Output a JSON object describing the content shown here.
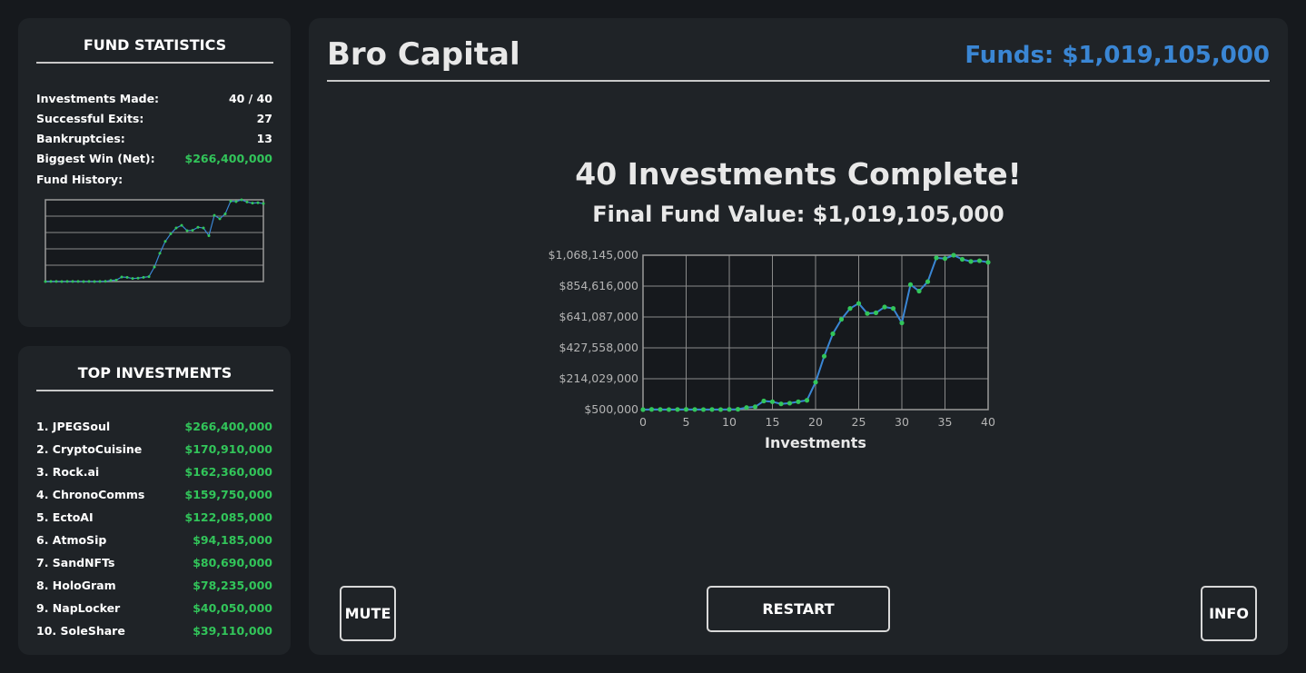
{
  "stats": {
    "title": "FUND STATISTICS",
    "rows": [
      {
        "label": "Investments Made:",
        "value": "40 / 40"
      },
      {
        "label": "Successful Exits:",
        "value": "27"
      },
      {
        "label": "Bankruptcies:",
        "value": "13"
      },
      {
        "label": "Biggest Win (Net):",
        "value": "$266,400,000"
      }
    ],
    "history_label": "Fund History:"
  },
  "top": {
    "title": "TOP INVESTMENTS",
    "items": [
      {
        "name": "1. JPEGSoul",
        "value": "$266,400,000"
      },
      {
        "name": "2. CryptoCuisine",
        "value": "$170,910,000"
      },
      {
        "name": "3. Rock.ai",
        "value": "$162,360,000"
      },
      {
        "name": "4. ChronoComms",
        "value": "$159,750,000"
      },
      {
        "name": "5. EctoAI",
        "value": "$122,085,000"
      },
      {
        "name": "6. AtmoSip",
        "value": "$94,185,000"
      },
      {
        "name": "7. SandNFTs",
        "value": "$80,690,000"
      },
      {
        "name": "8. HoloGram",
        "value": "$78,235,000"
      },
      {
        "name": "9. NapLocker",
        "value": "$40,050,000"
      },
      {
        "name": "10. SoleShare",
        "value": "$39,110,000"
      }
    ]
  },
  "header": {
    "title": "Bro Capital",
    "funds": "Funds: $1,019,105,000"
  },
  "result": {
    "heading": "40 Investments Complete!",
    "final": "Final Fund Value: $1,019,105,000"
  },
  "buttons": {
    "mute": "MUTE",
    "restart": "RESTART",
    "info": "INFO"
  },
  "colors": {
    "accent": "#3a86d4",
    "positive": "#32c55a",
    "line": "#3a86d4",
    "point": "#32c55a"
  },
  "chart_data": {
    "type": "line",
    "title": "",
    "xlabel": "Investments",
    "ylabel": "",
    "xlim": [
      0,
      40
    ],
    "ylim": [
      500000,
      1068145000
    ],
    "x_ticks": [
      0,
      5,
      10,
      15,
      20,
      25,
      30,
      35,
      40
    ],
    "y_ticks": [
      "$500,000",
      "$214,029,000",
      "$427,558,000",
      "$641,087,000",
      "$854,616,000",
      "$1,068,145,000"
    ],
    "grid": true,
    "series": [
      {
        "x": [
          0,
          1,
          2,
          3,
          4,
          5,
          6,
          7,
          8,
          9,
          10,
          11,
          12,
          13,
          14,
          15,
          16,
          17,
          18,
          19,
          20,
          21,
          22,
          23,
          24,
          25,
          26,
          27,
          28,
          29,
          30,
          31,
          32,
          33,
          34,
          35,
          36,
          37,
          38,
          39,
          40
        ],
        "values": [
          500000,
          2000000,
          1500000,
          1000000,
          1500000,
          2000000,
          1500000,
          1000000,
          1500000,
          1000000,
          2000000,
          3000000,
          15000000,
          20000000,
          60000000,
          55000000,
          40000000,
          45000000,
          55000000,
          65000000,
          190000000,
          370000000,
          525000000,
          625000000,
          700000000,
          735000000,
          665000000,
          670000000,
          710000000,
          700000000,
          600000000,
          865000000,
          820000000,
          885000000,
          1050000000,
          1045000000,
          1068000000,
          1040000000,
          1025000000,
          1030000000,
          1019105000
        ]
      }
    ]
  }
}
